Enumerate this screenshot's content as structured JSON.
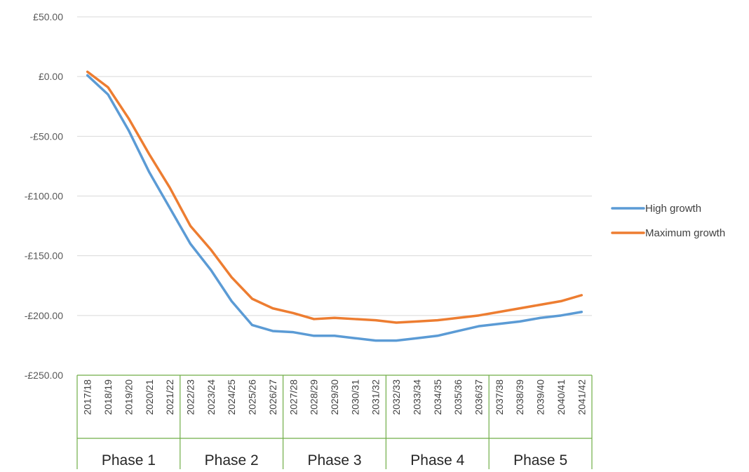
{
  "chart_data": {
    "type": "line",
    "title": "",
    "xlabel": "",
    "ylabel": "",
    "categories": [
      "2017/18",
      "2018/19",
      "2019/20",
      "2020/21",
      "2021/22",
      "2022/23",
      "2023/24",
      "2024/25",
      "2025/26",
      "2026/27",
      "2027/28",
      "2028/29",
      "2029/30",
      "2030/31",
      "2031/32",
      "2032/33",
      "2033/34",
      "2034/35",
      "2035/36",
      "2036/37",
      "2037/38",
      "2038/39",
      "2039/40",
      "2040/41",
      "2041/42"
    ],
    "ylim": [
      -250,
      50
    ],
    "y_ticks": [
      50,
      0,
      -50,
      -100,
      -150,
      -200,
      -250
    ],
    "y_tick_labels": [
      "£50.00",
      "£0.00",
      "-£50.00",
      "-£100.00",
      "-£150.00",
      "-£200.00",
      "-£250.00"
    ],
    "grid": "horizontal",
    "legend_position": "right",
    "series": [
      {
        "name": "High growth",
        "color": "#5B9BD5",
        "values": [
          1,
          -15,
          -45,
          -80,
          -110,
          -140,
          -162,
          -188,
          -208,
          -213,
          -214,
          -217,
          -217,
          -219,
          -221,
          -221,
          -219,
          -217,
          -213,
          -209,
          -207,
          -205,
          -202,
          -200,
          -197
        ]
      },
      {
        "name": "Maximum growth",
        "color": "#ED7D31",
        "values": [
          4,
          -9,
          -35,
          -65,
          -93,
          -125,
          -145,
          -168,
          -186,
          -194,
          -198,
          -203,
          -202,
          -203,
          -204,
          -206,
          -205,
          -204,
          -202,
          -200,
          -197,
          -194,
          -191,
          -188,
          -183
        ]
      }
    ],
    "groups": [
      {
        "label": "Phase 1",
        "start": 0,
        "end": 4
      },
      {
        "label": "Phase 2",
        "start": 5,
        "end": 9
      },
      {
        "label": "Phase 3",
        "start": 10,
        "end": 14
      },
      {
        "label": "Phase 4",
        "start": 15,
        "end": 19
      },
      {
        "label": "Phase 5",
        "start": 20,
        "end": 24
      }
    ],
    "group_border_color": "#70AD47",
    "gridline_color": "#D9D9D9"
  }
}
